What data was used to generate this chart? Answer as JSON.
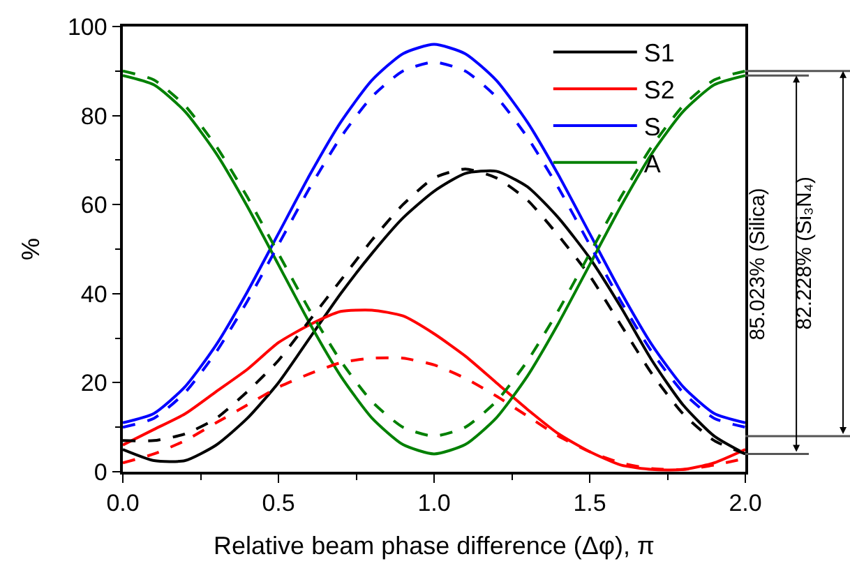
{
  "chart_data": {
    "type": "line",
    "xlabel": "Relative beam phase difference (Δφ), π",
    "ylabel": "%",
    "x": [
      0,
      0.1,
      0.2,
      0.3,
      0.4,
      0.5,
      0.6,
      0.7,
      0.8,
      0.9,
      1.0,
      1.1,
      1.2,
      1.3,
      1.4,
      1.5,
      1.6,
      1.7,
      1.8,
      1.9,
      2.0
    ],
    "series": [
      {
        "name": "S1",
        "color": "#000000",
        "values": [
          5,
          2.5,
          2.5,
          6,
          12,
          20,
          30,
          40,
          49,
          57,
          63,
          67,
          67.5,
          64,
          57,
          48,
          37,
          25,
          15,
          8,
          4
        ]
      },
      {
        "name": "S2",
        "color": "#ff0000",
        "values": [
          6,
          9.5,
          13,
          18,
          23,
          29,
          33,
          36,
          36.3,
          35,
          31,
          26,
          20,
          14,
          8.5,
          4.5,
          1.5,
          0.5,
          0.5,
          2,
          5
        ]
      },
      {
        "name": "S",
        "color": "#0000ff",
        "values": [
          11,
          13.1,
          19.1,
          28.5,
          40.4,
          53.5,
          66.6,
          78.5,
          87.9,
          93.9,
          96,
          93.9,
          87.9,
          78.5,
          66.6,
          53.5,
          40.4,
          28.5,
          19.1,
          13.1,
          11
        ]
      },
      {
        "name": "A",
        "color": "#008000",
        "values": [
          89,
          86.9,
          80.9,
          71.5,
          59.6,
          46.5,
          33.4,
          21.5,
          12.1,
          6.1,
          4,
          6.1,
          12.1,
          21.5,
          33.4,
          46.5,
          59.6,
          71.5,
          80.9,
          86.9,
          89
        ]
      },
      {
        "color": "#000000",
        "line_style": "dashed",
        "values": [
          7,
          7,
          8.5,
          12,
          18,
          25,
          34,
          43,
          52,
          60,
          66,
          68,
          66,
          61,
          53,
          44,
          33,
          22,
          13,
          7,
          4
        ]
      },
      {
        "color": "#ff0000",
        "line_style": "dashed",
        "values": [
          2,
          4,
          7,
          11,
          15,
          19,
          22,
          24.5,
          25.5,
          25.5,
          24,
          21,
          17,
          12.5,
          8,
          4.5,
          2,
          0.7,
          0.5,
          1.5,
          3
        ]
      },
      {
        "color": "#0000ff",
        "line_style": "dashed",
        "values": [
          10,
          12,
          17.8,
          26.9,
          38.3,
          51,
          63.7,
          75.1,
          84.2,
          90,
          92,
          90,
          84.2,
          75.1,
          63.7,
          51,
          38.3,
          26.9,
          17.8,
          12,
          10
        ]
      },
      {
        "color": "#008000",
        "line_style": "dashed",
        "values": [
          90,
          88,
          82.2,
          73.1,
          61.7,
          49,
          36.3,
          24.9,
          15.8,
          10,
          8,
          10,
          15.8,
          24.9,
          36.3,
          49,
          61.7,
          73.1,
          82.2,
          88,
          90
        ]
      }
    ],
    "xlim": [
      0,
      2
    ],
    "xticks": [
      {
        "value": 0,
        "label": "0.0"
      },
      {
        "value": 0.5,
        "label": "0.5"
      },
      {
        "value": 1,
        "label": "1.0"
      },
      {
        "value": 1.5,
        "label": "1.5"
      },
      {
        "value": 2,
        "label": "2.0"
      }
    ],
    "ylim": [
      0,
      100
    ],
    "yticks": [
      0,
      20,
      40,
      60,
      80,
      100
    ],
    "line_style": "solid",
    "marker": "none",
    "legend": "top right",
    "annotations": [
      "85.023% (Silica)",
      "82.228% (Si₃N₄)"
    ]
  }
}
